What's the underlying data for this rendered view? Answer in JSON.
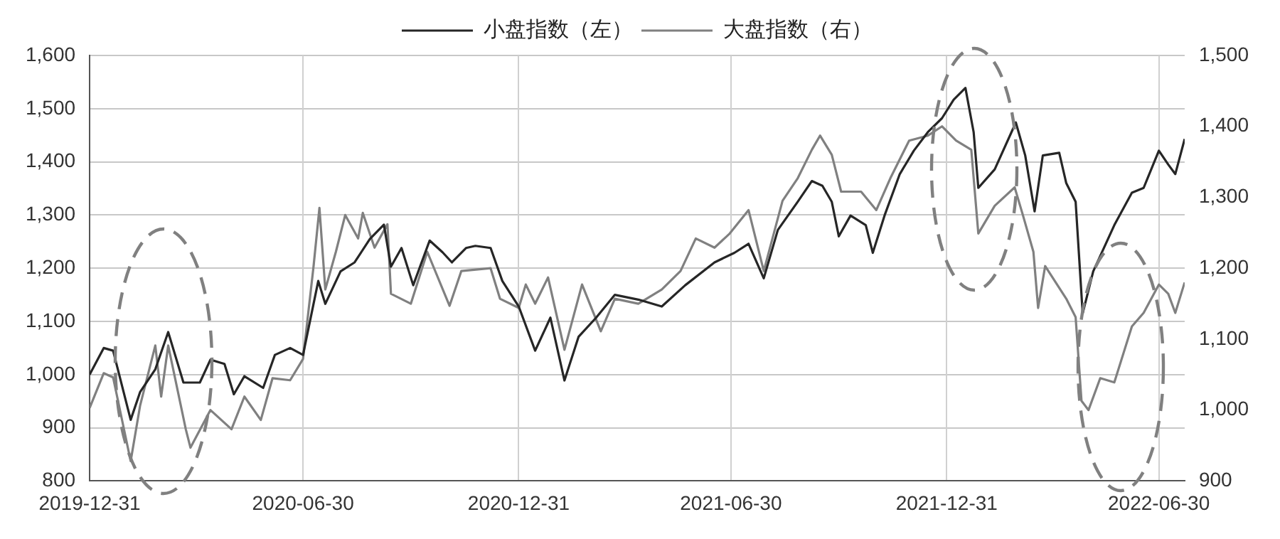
{
  "chart_data": {
    "type": "line",
    "legend": "top",
    "grid": true,
    "marker": "none",
    "line_style": "solid",
    "xlim": [
      "2019-12-31",
      "2022-07-22"
    ],
    "xticks": [
      "2019-12-31",
      "2020-06-30",
      "2020-12-31",
      "2021-06-30",
      "2021-12-31",
      "2022-06-30"
    ],
    "ylim": [
      800,
      1600
    ],
    "yticks": [
      {
        "value": 800,
        "label": "800"
      },
      {
        "value": 900,
        "label": "900"
      },
      {
        "value": 1000,
        "label": "1,000"
      },
      {
        "value": 1100,
        "label": "1,100"
      },
      {
        "value": 1200,
        "label": "1,200"
      },
      {
        "value": 1300,
        "label": "1,300"
      },
      {
        "value": 1400,
        "label": "1,400"
      },
      {
        "value": 1500,
        "label": "1,500"
      },
      {
        "value": 1600,
        "label": "1,600"
      }
    ],
    "y2lim": [
      900,
      1500
    ],
    "y2ticks": [
      {
        "value": 900,
        "label": "900"
      },
      {
        "value": 1000,
        "label": "1,000"
      },
      {
        "value": 1100,
        "label": "1,100"
      },
      {
        "value": 1200,
        "label": "1,200"
      },
      {
        "value": 1300,
        "label": "1,300"
      },
      {
        "value": 1400,
        "label": "1,400"
      },
      {
        "value": 1500,
        "label": "1,500"
      }
    ],
    "series": [
      {
        "name": "小盘指数（左）",
        "color": "#262626",
        "x": [
          "2019-12-31",
          "2020-01-12",
          "2020-01-20",
          "2020-02-04",
          "2020-02-12",
          "2020-02-25",
          "2020-03-07",
          "2020-03-20",
          "2020-04-03",
          "2020-04-12",
          "2020-04-24",
          "2020-05-02",
          "2020-05-11",
          "2020-05-27",
          "2020-06-06",
          "2020-06-19",
          "2020-06-30",
          "2020-07-13",
          "2020-07-19",
          "2020-08-01",
          "2020-08-13",
          "2020-08-26",
          "2020-09-07",
          "2020-09-13",
          "2020-09-22",
          "2020-10-02",
          "2020-10-16",
          "2020-10-27",
          "2020-11-04",
          "2020-11-16",
          "2020-11-24",
          "2020-12-07",
          "2020-12-17",
          "2020-12-31",
          "2021-01-14",
          "2021-01-27",
          "2021-02-08",
          "2021-02-20",
          "2021-03-07",
          "2021-03-23",
          "2021-04-12",
          "2021-05-02",
          "2021-05-22",
          "2021-06-16",
          "2021-07-03",
          "2021-07-15",
          "2021-07-28",
          "2021-08-09",
          "2021-08-26",
          "2021-09-07",
          "2021-09-16",
          "2021-09-24",
          "2021-09-30",
          "2021-10-10",
          "2021-10-23",
          "2021-10-29",
          "2021-11-08",
          "2021-11-21",
          "2021-12-03",
          "2021-12-15",
          "2021-12-27",
          "2022-01-06",
          "2022-01-16",
          "2022-01-23",
          "2022-01-27",
          "2022-02-10",
          "2022-02-28",
          "2022-03-08",
          "2022-03-16",
          "2022-03-23",
          "2022-04-06",
          "2022-04-12",
          "2022-04-20",
          "2022-04-26",
          "2022-05-05",
          "2022-05-23",
          "2022-06-07",
          "2022-06-17",
          "2022-06-30",
          "2022-07-08",
          "2022-07-14",
          "2022-07-22"
        ],
        "values": [
          1000,
          1050,
          1045,
          915,
          967,
          1010,
          1080,
          985,
          985,
          1028,
          1020,
          963,
          997,
          975,
          1037,
          1050,
          1037,
          1176,
          1133,
          1194,
          1211,
          1255,
          1282,
          1203,
          1238,
          1168,
          1252,
          1230,
          1211,
          1238,
          1242,
          1238,
          1176,
          1128,
          1045,
          1107,
          989,
          1071,
          1107,
          1150,
          1141,
          1128,
          1168,
          1211,
          1229,
          1246,
          1181,
          1272,
          1325,
          1364,
          1355,
          1325,
          1260,
          1299,
          1281,
          1229,
          1299,
          1377,
          1421,
          1456,
          1482,
          1517,
          1539,
          1456,
          1351,
          1386,
          1474,
          1412,
          1307,
          1412,
          1417,
          1360,
          1325,
          1115,
          1194,
          1281,
          1342,
          1351,
          1421,
          1395,
          1377,
          1443
        ]
      },
      {
        "name": "大盘指数（右）",
        "color": "#808080",
        "axis": "y2",
        "x": [
          "2019-12-31",
          "2020-01-12",
          "2020-01-20",
          "2020-02-04",
          "2020-02-12",
          "2020-02-25",
          "2020-03-01",
          "2020-03-07",
          "2020-03-22",
          "2020-03-26",
          "2020-04-12",
          "2020-04-30",
          "2020-05-11",
          "2020-05-25",
          "2020-06-04",
          "2020-06-19",
          "2020-06-30",
          "2020-07-09",
          "2020-07-14",
          "2020-07-19",
          "2020-07-28",
          "2020-08-05",
          "2020-08-16",
          "2020-08-20",
          "2020-08-30",
          "2020-09-10",
          "2020-09-13",
          "2020-09-30",
          "2020-10-14",
          "2020-11-02",
          "2020-11-12",
          "2020-12-07",
          "2020-12-15",
          "2020-12-31",
          "2021-01-06",
          "2021-01-14",
          "2021-01-25",
          "2021-02-08",
          "2021-02-23",
          "2021-03-11",
          "2021-03-23",
          "2021-04-12",
          "2021-05-02",
          "2021-05-18",
          "2021-05-31",
          "2021-06-16",
          "2021-06-29",
          "2021-07-15",
          "2021-07-28",
          "2021-08-13",
          "2021-08-26",
          "2021-09-07",
          "2021-09-14",
          "2021-09-24",
          "2021-10-02",
          "2021-10-19",
          "2021-11-01",
          "2021-11-13",
          "2021-11-29",
          "2021-12-15",
          "2021-12-27",
          "2022-01-08",
          "2022-01-21",
          "2022-01-27",
          "2022-02-10",
          "2022-02-27",
          "2022-03-06",
          "2022-03-15",
          "2022-03-19",
          "2022-03-25",
          "2022-04-12",
          "2022-04-20",
          "2022-04-25",
          "2022-05-01",
          "2022-05-11",
          "2022-05-23",
          "2022-06-07",
          "2022-06-17",
          "2022-06-30",
          "2022-07-08",
          "2022-07-14",
          "2022-07-22"
        ],
        "values": [
          1003,
          1052,
          1046,
          928,
          1006,
          1091,
          1019,
          1091,
          973,
          947,
          1000,
          973,
          1019,
          986,
          1045,
          1042,
          1072,
          1203,
          1285,
          1170,
          1223,
          1275,
          1242,
          1278,
          1229,
          1262,
          1164,
          1150,
          1223,
          1147,
          1196,
          1200,
          1157,
          1144,
          1177,
          1150,
          1187,
          1085,
          1177,
          1111,
          1157,
          1150,
          1170,
          1196,
          1242,
          1229,
          1249,
          1282,
          1196,
          1295,
          1327,
          1367,
          1387,
          1360,
          1308,
          1308,
          1282,
          1327,
          1380,
          1387,
          1400,
          1380,
          1367,
          1249,
          1288,
          1314,
          1275,
          1223,
          1144,
          1203,
          1157,
          1131,
          1013,
          1000,
          1045,
          1039,
          1118,
          1137,
          1177,
          1164,
          1137,
          1180
        ]
      }
    ]
  }
}
